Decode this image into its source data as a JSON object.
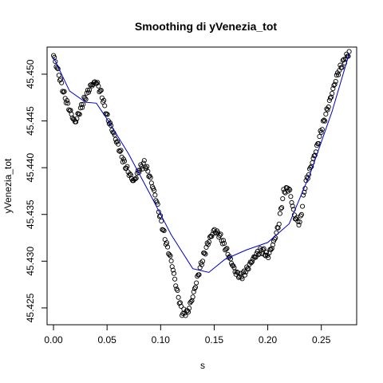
{
  "chart_data": {
    "type": "scatter",
    "title": "Smoothing di yVenezia_tot",
    "xlabel": "s",
    "ylabel": "yVenezia_tot",
    "xlim": [
      -0.006,
      0.283
    ],
    "ylim": [
      45.4232,
      45.4529
    ],
    "xticks": [
      0.0,
      0.05,
      0.1,
      0.15,
      0.2,
      0.25
    ],
    "xtick_labels": [
      "0.00",
      "0.05",
      "0.10",
      "0.15",
      "0.20",
      "0.25"
    ],
    "yticks": [
      45.425,
      45.43,
      45.435,
      45.44,
      45.445,
      45.45
    ],
    "ytick_labels": [
      "45.425",
      "45.430",
      "45.435",
      "45.440",
      "45.445",
      "45.450"
    ],
    "grid": false,
    "legend": "none",
    "colors": {
      "points": "#000000",
      "smooth": "#0000cc",
      "frame": "#000000"
    },
    "series": [
      {
        "kind": "points",
        "marker": "open-circle",
        "x_start": 0.0,
        "x_end": 0.276,
        "keyframes_x": [
          0.0,
          0.005,
          0.01,
          0.015,
          0.02,
          0.025,
          0.03,
          0.035,
          0.04,
          0.045,
          0.05,
          0.055,
          0.06,
          0.065,
          0.07,
          0.075,
          0.08,
          0.085,
          0.09,
          0.095,
          0.1,
          0.105,
          0.11,
          0.115,
          0.12,
          0.125,
          0.13,
          0.135,
          0.14,
          0.145,
          0.15,
          0.155,
          0.16,
          0.165,
          0.17,
          0.175,
          0.18,
          0.185,
          0.19,
          0.195,
          0.2,
          0.205,
          0.21,
          0.215,
          0.22,
          0.225,
          0.23,
          0.235,
          0.24,
          0.245,
          0.25,
          0.255,
          0.26,
          0.265,
          0.27,
          0.276
        ],
        "keyframes_y": [
          45.452,
          45.45,
          45.4478,
          45.4462,
          45.4448,
          45.4462,
          45.4476,
          45.4488,
          45.4492,
          45.4478,
          45.4455,
          45.444,
          45.4425,
          45.4408,
          45.4395,
          45.4385,
          45.4398,
          45.4405,
          45.439,
          45.437,
          45.4345,
          45.432,
          45.43,
          45.427,
          45.4245,
          45.4245,
          45.4262,
          45.4285,
          45.4305,
          45.4322,
          45.4333,
          45.4328,
          45.4316,
          45.4302,
          45.4288,
          45.4283,
          45.429,
          45.43,
          45.4308,
          45.4312,
          45.4305,
          45.4318,
          45.4338,
          45.4375,
          45.4378,
          45.4348,
          45.434,
          45.4382,
          45.44,
          45.4418,
          45.444,
          45.446,
          45.448,
          45.45,
          45.4512,
          45.4523
        ]
      },
      {
        "kind": "smooth-line",
        "x": [
          0.0,
          0.015,
          0.03,
          0.04,
          0.05,
          0.07,
          0.09,
          0.11,
          0.13,
          0.145,
          0.16,
          0.18,
          0.2,
          0.22,
          0.24,
          0.26,
          0.276
        ],
        "y": [
          45.4518,
          45.4482,
          45.447,
          45.4469,
          45.4452,
          45.4415,
          45.4372,
          45.4328,
          45.4292,
          45.4288,
          45.4302,
          45.4312,
          45.432,
          45.434,
          45.4395,
          45.446,
          45.4522
        ]
      }
    ]
  }
}
